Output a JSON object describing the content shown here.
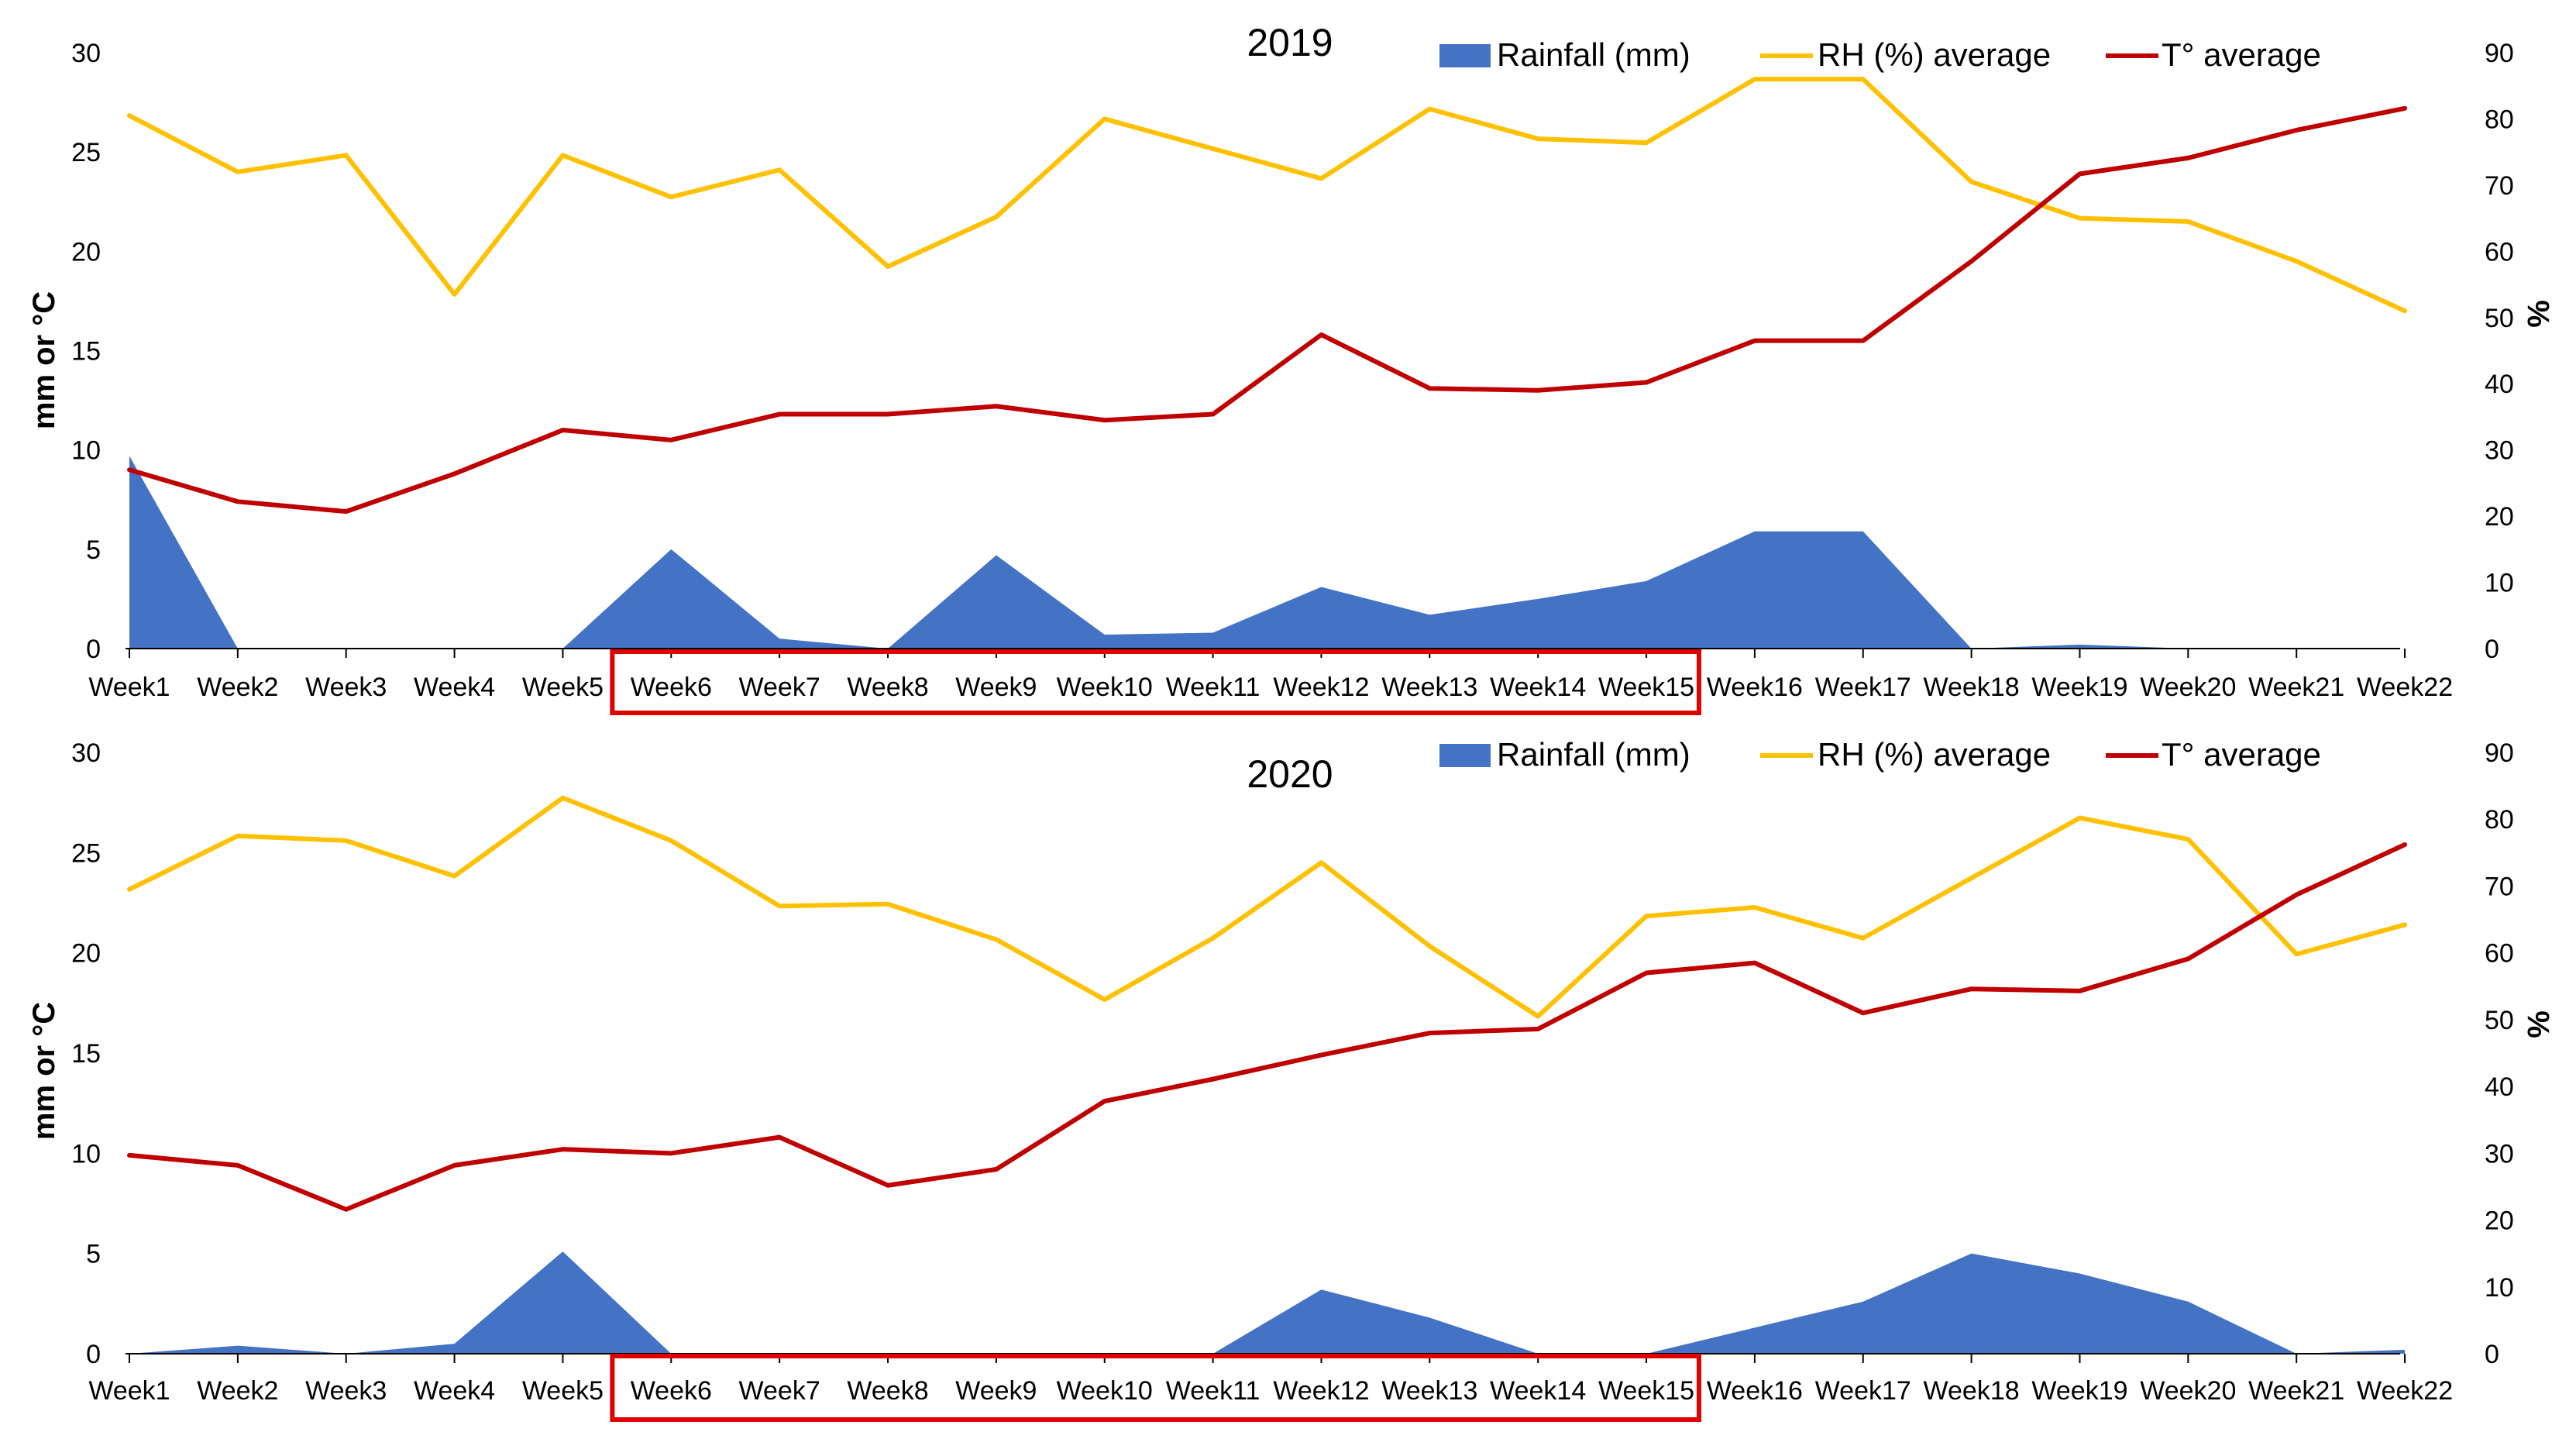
{
  "colors": {
    "rainfall": "#4472C4",
    "rh": "#FFC000",
    "temp": "#C00000",
    "highlight_box": "#E00000",
    "axis": "#000000"
  },
  "legend": {
    "rainfall": "Rainfall (mm)",
    "rh": "RH (%) average",
    "temp": "T° average"
  },
  "highlight": {
    "from": "Week6",
    "to": "Week15"
  },
  "chart_data": [
    {
      "type": "area+line",
      "title": "2019",
      "ylabel": "mm or °C",
      "y2label": "%",
      "ylim": [
        0,
        30
      ],
      "y2lim": [
        0,
        90
      ],
      "yticks": [
        "0",
        "5",
        "10",
        "15",
        "20",
        "25",
        "30"
      ],
      "y2ticks": [
        "0",
        "10",
        "20",
        "30",
        "40",
        "50",
        "60",
        "70",
        "80",
        "90"
      ],
      "categories": [
        "Week1",
        "Week2",
        "Week3",
        "Week4",
        "Week5",
        "Week6",
        "Week7",
        "Week8",
        "Week9",
        "Week10",
        "Week11",
        "Week12",
        "Week13",
        "Week14",
        "Week15",
        "Week16",
        "Week17",
        "Week18",
        "Week19",
        "Week20",
        "Week21",
        "Week22"
      ],
      "series": [
        {
          "name": "Rainfall (mm)",
          "axis": "left",
          "kind": "area",
          "values": [
            9.7,
            0,
            0,
            0,
            0,
            5.0,
            0.5,
            0,
            4.7,
            0.7,
            0.8,
            3.1,
            1.7,
            2.5,
            3.4,
            5.9,
            5.9,
            0,
            0.2,
            0,
            0,
            0
          ]
        },
        {
          "name": "RH (%) average",
          "axis": "right",
          "kind": "line",
          "values": [
            80.5,
            72,
            74.5,
            53.5,
            74.5,
            68.2,
            72.3,
            57.7,
            65.2,
            80,
            75.5,
            71,
            81.5,
            77,
            76.4,
            86,
            86,
            70.5,
            65,
            64.5,
            58.5,
            51
          ]
        },
        {
          "name": "T° average",
          "axis": "left",
          "kind": "line",
          "values": [
            9.0,
            7.4,
            6.9,
            8.8,
            11.0,
            10.5,
            11.8,
            11.8,
            12.2,
            11.5,
            11.8,
            15.8,
            13.1,
            13.0,
            13.4,
            15.5,
            15.5,
            19.5,
            23.9,
            24.7,
            26.1,
            27.2
          ]
        }
      ]
    },
    {
      "type": "area+line",
      "title": "2020",
      "ylabel": "mm or °C",
      "y2label": "%",
      "ylim": [
        0,
        30
      ],
      "y2lim": [
        0,
        90
      ],
      "yticks": [
        "0",
        "5",
        "10",
        "15",
        "20",
        "25",
        "30"
      ],
      "y2ticks": [
        "0",
        "10",
        "20",
        "30",
        "40",
        "50",
        "60",
        "70",
        "80",
        "90"
      ],
      "categories": [
        "Week1",
        "Week2",
        "Week3",
        "Week4",
        "Week5",
        "Week6",
        "Week7",
        "Week8",
        "Week9",
        "Week10",
        "Week11",
        "Week12",
        "Week13",
        "Week14",
        "Week15",
        "Week16",
        "Week17",
        "Week18",
        "Week19",
        "Week20",
        "Week21",
        "Week22"
      ],
      "series": [
        {
          "name": "Rainfall (mm)",
          "axis": "left",
          "kind": "area",
          "values": [
            0,
            0.4,
            0,
            0.5,
            5.1,
            0,
            0,
            0,
            0,
            0,
            0,
            3.2,
            1.8,
            0,
            0,
            1.3,
            2.6,
            5.0,
            4.0,
            2.6,
            0,
            0.2
          ]
        },
        {
          "name": "RH (%) average",
          "axis": "right",
          "kind": "line",
          "values": [
            69.5,
            77.5,
            76.8,
            71.5,
            83.2,
            76.8,
            67,
            67.3,
            62,
            53,
            62.2,
            73.5,
            61,
            50.5,
            65.5,
            66.8,
            62.2,
            71.2,
            80.2,
            77,
            59.8,
            64.2
          ]
        },
        {
          "name": "T° average",
          "axis": "left",
          "kind": "line",
          "values": [
            9.9,
            9.4,
            7.2,
            9.4,
            10.2,
            10.0,
            10.8,
            8.4,
            9.2,
            12.6,
            13.7,
            14.9,
            16.0,
            16.2,
            19.0,
            19.5,
            17.0,
            18.2,
            18.1,
            19.7,
            22.9,
            25.4
          ]
        }
      ]
    }
  ]
}
